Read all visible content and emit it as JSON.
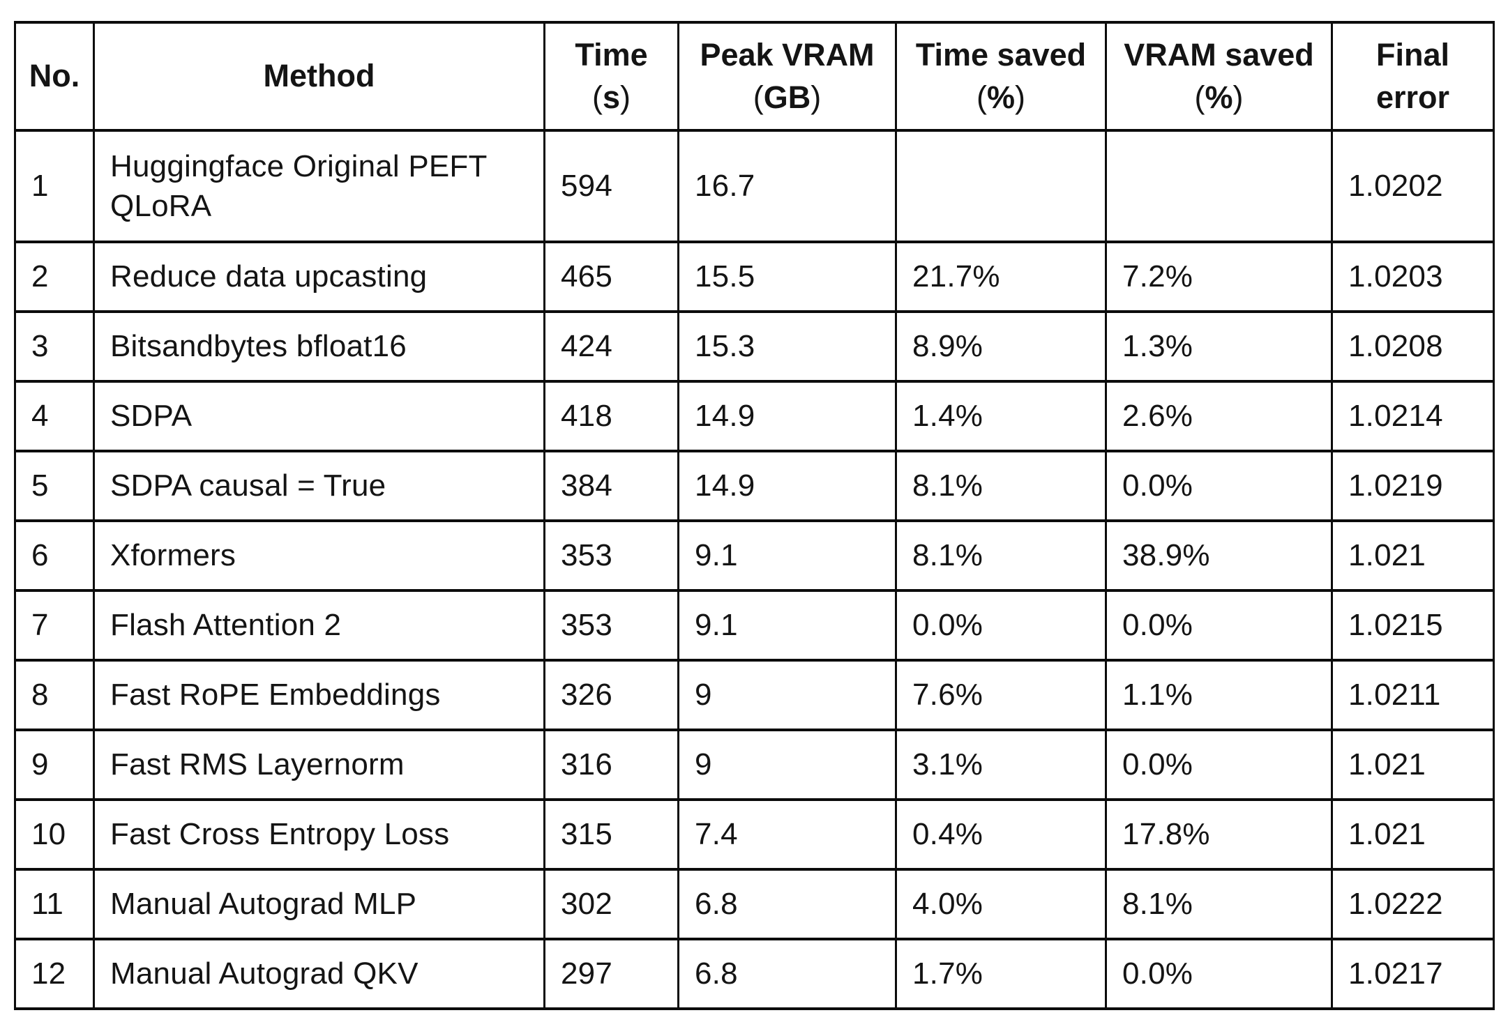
{
  "chart_data": {
    "type": "table",
    "title": "",
    "columns": [
      "No.",
      "Method",
      "Time (s)",
      "Peak VRAM (GB)",
      "Time saved (%)",
      "VRAM saved (%)",
      "Final error"
    ],
    "rows": [
      [
        "1",
        "Huggingface Original PEFT QLoRA",
        "594",
        "16.7",
        "",
        "",
        "1.0202"
      ],
      [
        "2",
        "Reduce data upcasting",
        "465",
        "15.5",
        "21.7%",
        "7.2%",
        "1.0203"
      ],
      [
        "3",
        "Bitsandbytes bfloat16",
        "424",
        "15.3",
        "8.9%",
        "1.3%",
        "1.0208"
      ],
      [
        "4",
        "SDPA",
        "418",
        "14.9",
        "1.4%",
        "2.6%",
        "1.0214"
      ],
      [
        "5",
        "SDPA causal = True",
        "384",
        "14.9",
        "8.1%",
        "0.0%",
        "1.0219"
      ],
      [
        "6",
        "Xformers",
        "353",
        "9.1",
        "8.1%",
        "38.9%",
        "1.021"
      ],
      [
        "7",
        "Flash Attention 2",
        "353",
        "9.1",
        "0.0%",
        "0.0%",
        "1.0215"
      ],
      [
        "8",
        "Fast RoPE Embeddings",
        "326",
        "9",
        "7.6%",
        "1.1%",
        "1.0211"
      ],
      [
        "9",
        "Fast RMS Layernorm",
        "316",
        "9",
        "3.1%",
        "0.0%",
        "1.021"
      ],
      [
        "10",
        "Fast Cross Entropy Loss",
        "315",
        "7.4",
        "0.4%",
        "17.8%",
        "1.021"
      ],
      [
        "11",
        "Manual Autograd MLP",
        "302",
        "6.8",
        "4.0%",
        "8.1%",
        "1.0222"
      ],
      [
        "12",
        "Manual Autograd QKV",
        "297",
        "6.8",
        "1.7%",
        "0.0%",
        "1.0217"
      ]
    ]
  },
  "table": {
    "headers": [
      {
        "key": "no",
        "line1": "No."
      },
      {
        "key": "method",
        "line1": "Method"
      },
      {
        "key": "time",
        "line1": "Time",
        "line2": "(s)"
      },
      {
        "key": "peak-vram",
        "line1": "Peak VRAM",
        "line2": "(GB)"
      },
      {
        "key": "time-saved",
        "line1": "Time saved",
        "line2": "(%)"
      },
      {
        "key": "vram-saved",
        "line1": "VRAM saved",
        "line2": "(%)"
      },
      {
        "key": "final-error",
        "line1": "Final",
        "line2": "error"
      }
    ],
    "column_keys": [
      "no",
      "method",
      "time",
      "peak-vram",
      "time-saved",
      "vram-saved",
      "final-error"
    ],
    "border_color": "#0c0c0c",
    "text_color": "#141414",
    "background_color": "#ffffff"
  }
}
